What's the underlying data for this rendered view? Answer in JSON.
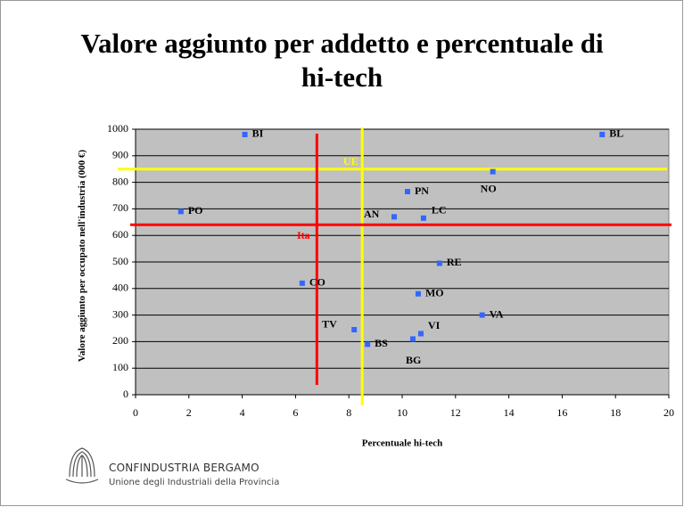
{
  "chart_data": {
    "type": "scatter",
    "title": "Valore aggiunto per addetto e percentuale di hi-tech",
    "x_label": "Percentuale hi-tech",
    "y_label": "Valore aggiunto per occupato nell'industria (000 €)",
    "color": "#3366ff",
    "point_labels": [
      "BI",
      "BL",
      "NO",
      "PN",
      "PO",
      "AN",
      "LC",
      "RE",
      "CO",
      "MO",
      "VA",
      "TV",
      "VI",
      "BG",
      "BS"
    ],
    "x": [
      4.1,
      17.5,
      13.4,
      10.2,
      1.7,
      9.7,
      10.8,
      11.4,
      6.25,
      10.6,
      13.0,
      8.2,
      10.7,
      10.4,
      8.7
    ],
    "values": [
      980,
      980,
      840,
      765,
      690,
      670,
      665,
      495,
      420,
      380,
      300,
      245,
      230,
      210,
      190
    ],
    "reference_lines": [
      {
        "label": "UE",
        "color": "#ffff00",
        "x": 8.5,
        "y": 850
      },
      {
        "label": "Ita",
        "color": "#ff0000",
        "x": 6.8,
        "y": 640
      }
    ],
    "xlim": [
      0,
      20
    ],
    "xticks": [
      0,
      2,
      4,
      6,
      8,
      10,
      12,
      14,
      16,
      18,
      20
    ],
    "ylim": [
      0,
      1000
    ],
    "yticks": [
      0,
      100,
      200,
      300,
      400,
      500,
      600,
      700,
      800,
      900,
      1000
    ],
    "grid": true
  },
  "logo": {
    "name": "CONFINDUSTRIA BERGAMO",
    "tagline": "Unione degli Industriali della Provincia"
  }
}
